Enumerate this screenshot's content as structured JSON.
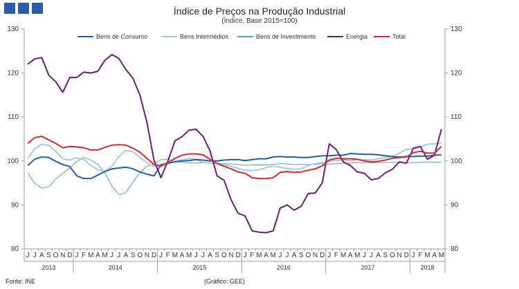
{
  "header": {
    "title": "Índice de Preços na Produção Industrial",
    "subtitle": "(Índice, Base 2015=100)"
  },
  "footer": {
    "source": "Fonte: INE",
    "credit": "(Gráfico: GEE)"
  },
  "chart_data": {
    "type": "line",
    "title": "Índice de Preços na Produção Industrial",
    "subtitle": "(Índice, Base 2015=100)",
    "xlabel": "",
    "ylabel": "",
    "ylim": [
      80,
      130
    ],
    "yticks": [
      80,
      90,
      100,
      110,
      120,
      130
    ],
    "dual_axis": true,
    "grid": false,
    "legend_position": "top",
    "x": [
      "J",
      "J",
      "A",
      "S",
      "O",
      "N",
      "D",
      "J",
      "F",
      "M",
      "A",
      "M",
      "J",
      "J",
      "A",
      "S",
      "O",
      "N",
      "D",
      "J",
      "F",
      "M",
      "A",
      "M",
      "J",
      "J",
      "A",
      "S",
      "O",
      "N",
      "D",
      "J",
      "F",
      "M",
      "A",
      "M",
      "J",
      "J",
      "A",
      "S",
      "O",
      "N",
      "D",
      "J",
      "F",
      "M",
      "A",
      "M",
      "J",
      "J",
      "A",
      "S",
      "O",
      "N",
      "D",
      "J",
      "F",
      "M",
      "A",
      "M"
    ],
    "years": [
      {
        "label": "2013",
        "start": 0,
        "end": 6
      },
      {
        "label": "2014",
        "start": 7,
        "end": 18
      },
      {
        "label": "2015",
        "start": 19,
        "end": 30
      },
      {
        "label": "2016",
        "start": 31,
        "end": 42
      },
      {
        "label": "2017",
        "start": 43,
        "end": 54
      },
      {
        "label": "2018",
        "start": 55,
        "end": 59
      }
    ],
    "series": [
      {
        "name": "Bens de Consumo",
        "color": "#1f5fa6",
        "values": [
          99.0,
          100.4,
          100.9,
          100.8,
          99.9,
          99.2,
          98.7,
          96.6,
          96.0,
          96.0,
          96.8,
          97.6,
          98.2,
          98.4,
          98.6,
          98.2,
          97.5,
          97.0,
          96.6,
          99.1,
          99.5,
          99.8,
          100.0,
          100.1,
          100.3,
          100.2,
          100.0,
          100.0,
          100.2,
          100.3,
          100.3,
          100.1,
          100.3,
          100.5,
          100.5,
          100.9,
          101.0,
          100.9,
          100.9,
          100.8,
          100.8,
          101.0,
          101.2,
          101.2,
          101.3,
          101.3,
          101.7,
          101.6,
          101.5,
          101.5,
          101.4,
          101.2,
          101.0,
          100.9,
          101.0,
          101.0,
          101.1,
          101.1,
          101.3,
          101.4
        ]
      },
      {
        "name": "Bens Intermédios",
        "color": "#a8c8e8",
        "values": [
          100.5,
          102.8,
          103.8,
          103.5,
          102.2,
          100.5,
          100.2,
          100.7,
          100.3,
          99.0,
          98.0,
          97.6,
          98.8,
          101.0,
          102.4,
          102.1,
          100.8,
          99.6,
          98.7,
          99.2,
          99.4,
          100.0,
          100.2,
          100.6,
          100.3,
          99.7,
          99.5,
          99.4,
          99.2,
          98.8,
          98.3,
          97.9,
          97.8,
          98.0,
          98.5,
          98.8,
          98.6,
          98.3,
          98.1,
          98.2,
          99.0,
          99.4,
          99.6,
          99.9,
          100.1,
          100.2,
          100.1,
          100.3,
          100.3,
          100.2,
          100.5,
          100.8,
          101.0,
          101.8,
          102.6,
          102.8,
          103.2,
          103.8,
          103.9,
          104.1
        ]
      },
      {
        "name": "Bens de Investimento",
        "color": "#5aaa7f",
        "values": [
          97.3,
          94.9,
          93.8,
          94.1,
          95.9,
          97.2,
          98.4,
          99.9,
          100.8,
          100.2,
          99.2,
          97.3,
          94.3,
          92.3,
          92.8,
          95.2,
          97.3,
          98.8,
          99.2,
          100.3,
          100.4,
          99.9,
          99.7,
          99.6,
          99.5,
          99.6,
          99.5,
          99.5,
          99.4,
          99.3,
          99.2,
          99.0,
          99.1,
          99.1,
          99.1,
          99.2,
          99.4,
          99.3,
          99.2,
          99.2,
          99.2,
          99.2,
          99.4,
          99.3,
          99.4,
          99.5,
          99.5,
          99.6,
          99.6,
          99.6,
          99.6,
          99.6,
          99.7,
          99.6,
          99.6,
          99.6,
          99.7,
          99.8,
          99.7,
          99.8
        ]
      },
      {
        "name": "Energia",
        "color": "#6a1a7a",
        "values": [
          122.0,
          123.2,
          123.5,
          119.5,
          118.0,
          115.6,
          119.0,
          119.0,
          120.2,
          120.0,
          120.4,
          122.9,
          124.2,
          123.3,
          120.8,
          118.8,
          115.0,
          108.8,
          100.2,
          96.2,
          100.0,
          104.6,
          105.5,
          107.0,
          107.2,
          105.6,
          102.3,
          96.6,
          95.6,
          91.2,
          88.1,
          87.5,
          84.1,
          83.8,
          83.7,
          84.1,
          89.3,
          90.0,
          88.8,
          89.7,
          92.6,
          92.7,
          95.0,
          103.9,
          102.6,
          99.8,
          99.0,
          97.5,
          97.2,
          95.7,
          96.0,
          97.3,
          98.1,
          99.8,
          99.5,
          102.9,
          103.3,
          100.4,
          101.3,
          107.2
        ]
      },
      {
        "name": "Total",
        "color": "#d42a2a",
        "values": [
          104.0,
          105.3,
          105.6,
          104.8,
          104.0,
          103.0,
          103.3,
          103.2,
          103.0,
          102.5,
          102.5,
          103.1,
          103.6,
          103.7,
          103.6,
          102.9,
          102.0,
          100.6,
          99.2,
          98.8,
          99.6,
          100.6,
          101.3,
          101.6,
          101.6,
          101.4,
          100.4,
          99.4,
          98.8,
          98.2,
          97.5,
          97.2,
          96.2,
          96.0,
          96.0,
          96.2,
          97.4,
          97.6,
          97.4,
          97.5,
          97.9,
          98.2,
          98.9,
          100.2,
          100.6,
          100.5,
          100.5,
          100.4,
          100.0,
          99.8,
          99.9,
          100.2,
          100.6,
          100.8,
          100.9,
          101.9,
          102.2,
          101.8,
          101.8,
          103.3
        ]
      }
    ]
  }
}
